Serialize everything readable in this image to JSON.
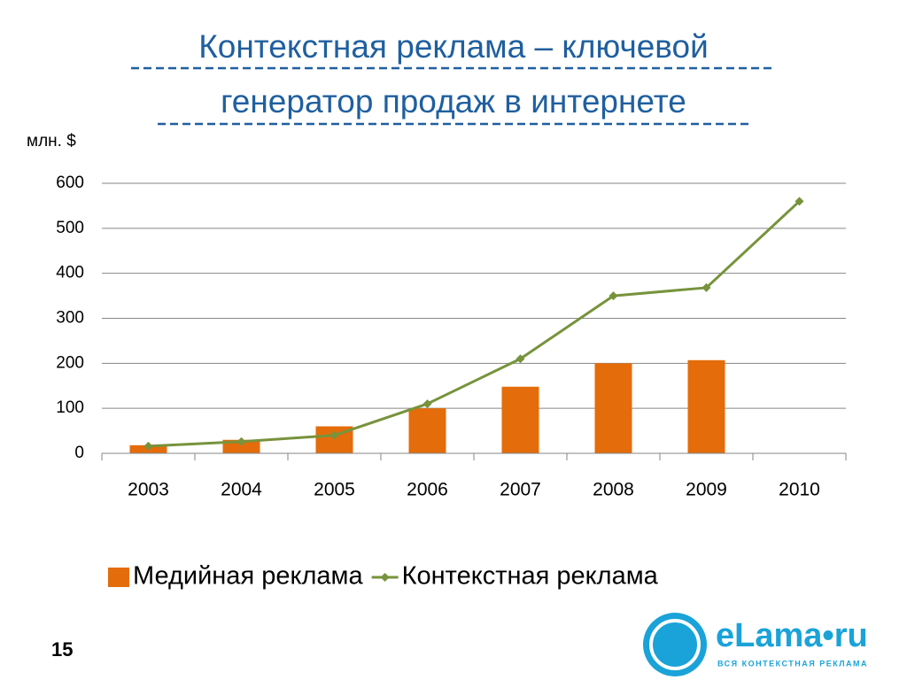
{
  "chart_data": {
    "type": "bar_line",
    "title": [
      "Контекстная реклама – ключевой",
      "генератор продаж в интернете"
    ],
    "y_label": "млн. $",
    "categories": [
      "2003",
      "2004",
      "2005",
      "2006",
      "2007",
      "2008",
      "2009",
      "2010"
    ],
    "series": [
      {
        "name": "Медийная реклама",
        "type": "bar",
        "color": "#e46c0a",
        "values": [
          18,
          30,
          60,
          100,
          148,
          200,
          207,
          null
        ]
      },
      {
        "name": "Контекстная реклама",
        "type": "line",
        "color": "#77933c",
        "values": [
          16,
          26,
          40,
          110,
          210,
          350,
          368,
          560
        ]
      }
    ],
    "ylim": [
      0,
      600
    ],
    "yticks": [
      0,
      100,
      200,
      300,
      400,
      500,
      600
    ],
    "grid": true,
    "legend": "bottom"
  },
  "slide": {
    "page_number": "15",
    "logo": "eLama•ru",
    "logo_tagline": "ВСЯ КОНТЕКСТНАЯ РЕКЛАМА"
  }
}
